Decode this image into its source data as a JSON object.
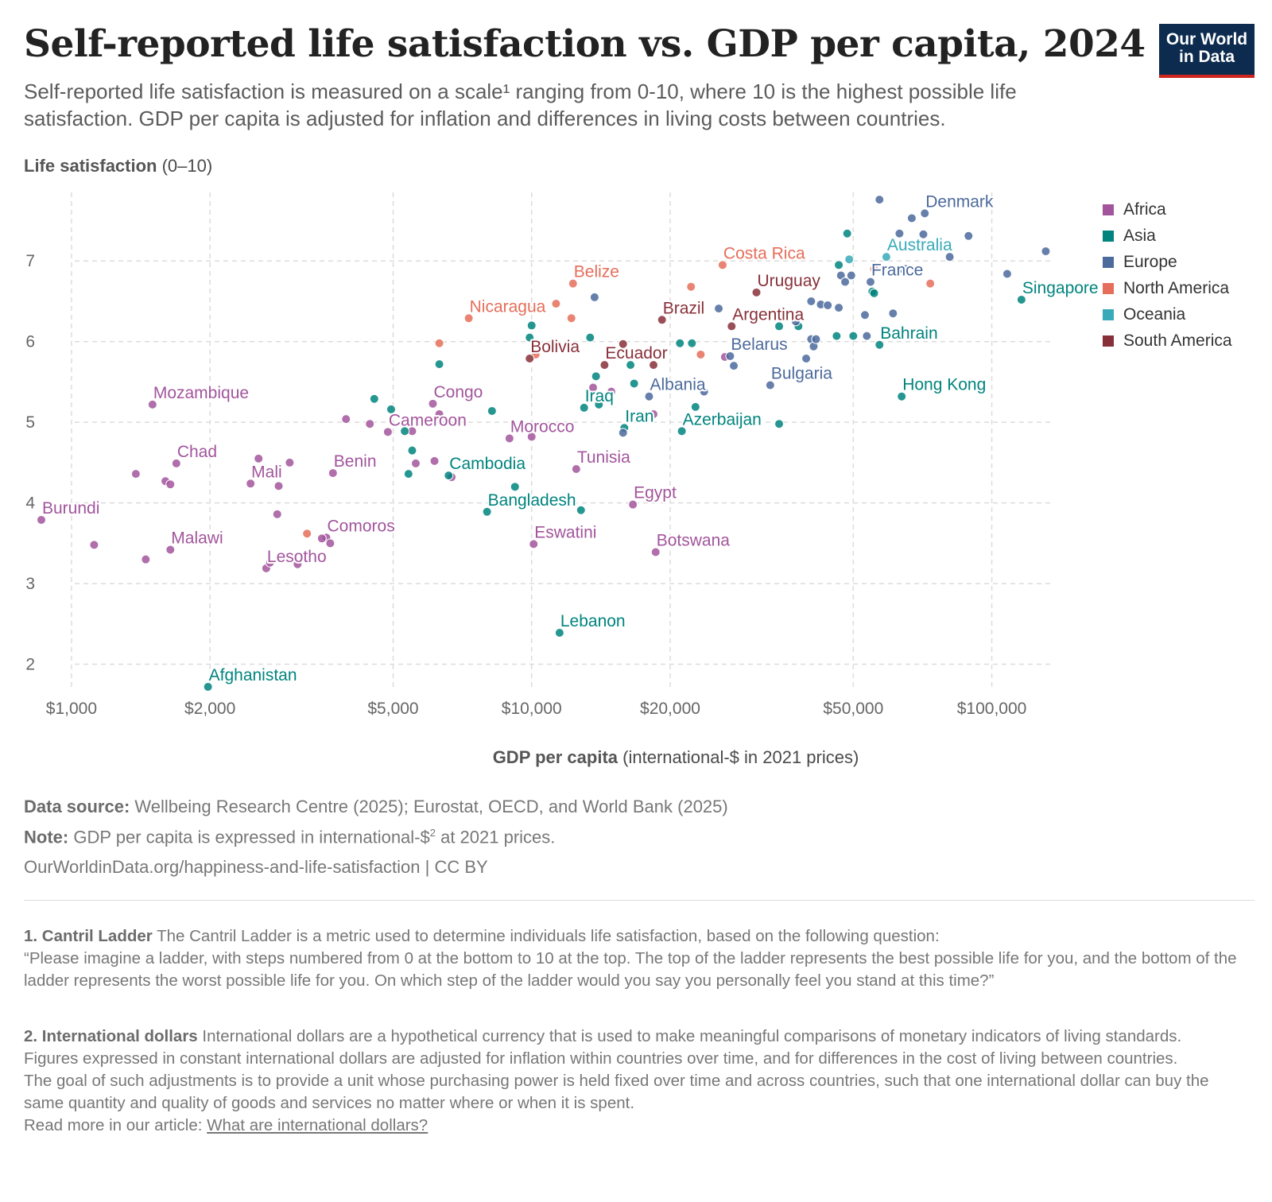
{
  "header": {
    "title": "Self-reported life satisfaction vs. GDP per capita, 2024",
    "subtitle": "Self-reported life satisfaction is measured on a scale¹ ranging from 0-10, where 10 is the highest possible life satisfaction. GDP per capita is adjusted for inflation and differences in living costs between countries.",
    "logo_line1": "Our World",
    "logo_line2": "in Data"
  },
  "colors": {
    "Africa": "#a2559c",
    "Asia": "#00847e",
    "Europe": "#4c6a9c",
    "North America": "#e56e5a",
    "Oceania": "#38aaba",
    "South America": "#883039"
  },
  "chart_data": {
    "type": "scatter",
    "title": "Self-reported life satisfaction vs. GDP per capita, 2024",
    "ylabel_bold": "Life satisfaction",
    "ylabel_rest": "(0–10)",
    "xlabel_bold": "GDP per capita",
    "xlabel_rest": "(international-$ in 2021 prices)",
    "x_scale": "log",
    "xlim": [
      860,
      135000
    ],
    "ylim": [
      1.7,
      7.85
    ],
    "x_ticks": [
      1000,
      2000,
      5000,
      10000,
      20000,
      50000,
      100000
    ],
    "x_tick_labels": [
      "$1,000",
      "$2,000",
      "$5,000",
      "$10,000",
      "$20,000",
      "$50,000",
      "$100,000"
    ],
    "y_ticks": [
      2,
      3,
      4,
      5,
      6,
      7
    ],
    "y_tick_labels": [
      "2",
      "3",
      "4",
      "5",
      "6",
      "7"
    ],
    "grid": true,
    "legend_position": "right",
    "legend": [
      "Africa",
      "Asia",
      "Europe",
      "North America",
      "Oceania",
      "South America"
    ],
    "points": [
      {
        "label": "Burundi",
        "x": 860,
        "y": 3.79,
        "region": "Africa"
      },
      {
        "label": "Malawi",
        "x": 1640,
        "y": 3.42,
        "region": "Africa"
      },
      {
        "label": "Mozambique",
        "x": 1500,
        "y": 5.22,
        "region": "Africa"
      },
      {
        "label": "Chad",
        "x": 1690,
        "y": 4.49,
        "region": "Africa"
      },
      {
        "label": "Mali",
        "x": 2450,
        "y": 4.24,
        "region": "Africa"
      },
      {
        "label": "Lesotho",
        "x": 2650,
        "y": 3.19,
        "region": "Africa"
      },
      {
        "label": "Comoros",
        "x": 3580,
        "y": 3.57,
        "region": "Africa"
      },
      {
        "label": "Benin",
        "x": 3700,
        "y": 4.37,
        "region": "Africa"
      },
      {
        "label": "Cameroon",
        "x": 4870,
        "y": 4.88,
        "region": "Africa"
      },
      {
        "label": "Congo",
        "x": 6100,
        "y": 5.23,
        "region": "Africa"
      },
      {
        "label": "Morocco",
        "x": 8950,
        "y": 4.8,
        "region": "Africa"
      },
      {
        "label": "Eswatini",
        "x": 10100,
        "y": 3.49,
        "region": "Africa"
      },
      {
        "label": "Tunisia",
        "x": 12500,
        "y": 4.42,
        "region": "Africa"
      },
      {
        "label": "Egypt",
        "x": 16600,
        "y": 3.98,
        "region": "Africa"
      },
      {
        "label": "Botswana",
        "x": 18600,
        "y": 3.39,
        "region": "Africa"
      },
      {
        "label": "",
        "x": 1120,
        "y": 3.48,
        "region": "Africa"
      },
      {
        "label": "",
        "x": 1380,
        "y": 4.36,
        "region": "Africa"
      },
      {
        "label": "",
        "x": 1450,
        "y": 3.3,
        "region": "Africa"
      },
      {
        "label": "",
        "x": 1600,
        "y": 4.27,
        "region": "Africa"
      },
      {
        "label": "",
        "x": 1640,
        "y": 4.23,
        "region": "Africa"
      },
      {
        "label": "",
        "x": 2550,
        "y": 4.55,
        "region": "Africa"
      },
      {
        "label": "",
        "x": 2700,
        "y": 3.26,
        "region": "Africa"
      },
      {
        "label": "",
        "x": 2800,
        "y": 3.86,
        "region": "Africa"
      },
      {
        "label": "",
        "x": 2820,
        "y": 4.21,
        "region": "Africa"
      },
      {
        "label": "",
        "x": 2980,
        "y": 4.5,
        "region": "Africa"
      },
      {
        "label": "",
        "x": 3100,
        "y": 3.24,
        "region": "Africa"
      },
      {
        "label": "",
        "x": 3500,
        "y": 3.56,
        "region": "Africa"
      },
      {
        "label": "",
        "x": 3650,
        "y": 3.5,
        "region": "Africa"
      },
      {
        "label": "",
        "x": 3950,
        "y": 5.04,
        "region": "Africa"
      },
      {
        "label": "",
        "x": 4450,
        "y": 4.98,
        "region": "Africa"
      },
      {
        "label": "",
        "x": 5600,
        "y": 4.49,
        "region": "Africa"
      },
      {
        "label": "",
        "x": 5500,
        "y": 4.89,
        "region": "Africa"
      },
      {
        "label": "",
        "x": 6150,
        "y": 4.52,
        "region": "Africa"
      },
      {
        "label": "",
        "x": 6300,
        "y": 5.1,
        "region": "Africa"
      },
      {
        "label": "",
        "x": 6700,
        "y": 4.32,
        "region": "Africa"
      },
      {
        "label": "",
        "x": 10000,
        "y": 4.82,
        "region": "Africa"
      },
      {
        "label": "",
        "x": 13600,
        "y": 5.43,
        "region": "Africa"
      },
      {
        "label": "",
        "x": 14900,
        "y": 5.38,
        "region": "Africa"
      },
      {
        "label": "",
        "x": 18400,
        "y": 5.1,
        "region": "Africa"
      },
      {
        "label": "",
        "x": 26300,
        "y": 5.81,
        "region": "Africa"
      },
      {
        "label": "Afghanistan",
        "x": 1980,
        "y": 1.72,
        "region": "Asia"
      },
      {
        "label": "Cambodia",
        "x": 6600,
        "y": 4.34,
        "region": "Asia"
      },
      {
        "label": "Bangladesh",
        "x": 8000,
        "y": 3.89,
        "region": "Asia"
      },
      {
        "label": "Lebanon",
        "x": 11500,
        "y": 2.39,
        "region": "Asia"
      },
      {
        "label": "Iraq",
        "x": 13000,
        "y": 5.18,
        "region": "Asia"
      },
      {
        "label": "Iran",
        "x": 15900,
        "y": 4.93,
        "region": "Asia"
      },
      {
        "label": "Azerbaijan",
        "x": 21200,
        "y": 4.89,
        "region": "Asia"
      },
      {
        "label": "Bahrain",
        "x": 57000,
        "y": 5.96,
        "region": "Asia"
      },
      {
        "label": "Hong Kong",
        "x": 63700,
        "y": 5.32,
        "region": "Asia"
      },
      {
        "label": "Singapore",
        "x": 116000,
        "y": 6.52,
        "region": "Asia"
      },
      {
        "label": "",
        "x": 4550,
        "y": 5.29,
        "region": "Asia"
      },
      {
        "label": "",
        "x": 4950,
        "y": 5.16,
        "region": "Asia"
      },
      {
        "label": "",
        "x": 5300,
        "y": 4.89,
        "region": "Asia"
      },
      {
        "label": "",
        "x": 5400,
        "y": 4.36,
        "region": "Asia"
      },
      {
        "label": "",
        "x": 5500,
        "y": 4.65,
        "region": "Asia"
      },
      {
        "label": "",
        "x": 6300,
        "y": 5.72,
        "region": "Asia"
      },
      {
        "label": "",
        "x": 8200,
        "y": 5.14,
        "region": "Asia"
      },
      {
        "label": "",
        "x": 9200,
        "y": 4.2,
        "region": "Asia"
      },
      {
        "label": "",
        "x": 9900,
        "y": 6.05,
        "region": "Asia"
      },
      {
        "label": "",
        "x": 10000,
        "y": 6.2,
        "region": "Asia"
      },
      {
        "label": "",
        "x": 12800,
        "y": 3.91,
        "region": "Asia"
      },
      {
        "label": "",
        "x": 13400,
        "y": 6.05,
        "region": "Asia"
      },
      {
        "label": "",
        "x": 13800,
        "y": 5.57,
        "region": "Asia"
      },
      {
        "label": "",
        "x": 14000,
        "y": 5.22,
        "region": "Asia"
      },
      {
        "label": "",
        "x": 16400,
        "y": 5.71,
        "region": "Asia"
      },
      {
        "label": "",
        "x": 16700,
        "y": 5.48,
        "region": "Asia"
      },
      {
        "label": "",
        "x": 21000,
        "y": 5.98,
        "region": "Asia"
      },
      {
        "label": "",
        "x": 22300,
        "y": 5.98,
        "region": "Asia"
      },
      {
        "label": "",
        "x": 22700,
        "y": 5.19,
        "region": "Asia"
      },
      {
        "label": "",
        "x": 34500,
        "y": 4.98,
        "region": "Asia"
      },
      {
        "label": "",
        "x": 34500,
        "y": 6.19,
        "region": "Asia"
      },
      {
        "label": "",
        "x": 38000,
        "y": 6.19,
        "region": "Asia"
      },
      {
        "label": "",
        "x": 46000,
        "y": 6.07,
        "region": "Asia"
      },
      {
        "label": "",
        "x": 46500,
        "y": 6.95,
        "region": "Asia"
      },
      {
        "label": "",
        "x": 48500,
        "y": 7.34,
        "region": "Asia"
      },
      {
        "label": "",
        "x": 50000,
        "y": 6.07,
        "region": "Asia"
      },
      {
        "label": "",
        "x": 55000,
        "y": 6.62,
        "region": "Asia"
      },
      {
        "label": "",
        "x": 55500,
        "y": 6.6,
        "region": "Asia"
      },
      {
        "label": "France",
        "x": 54500,
        "y": 6.74,
        "region": "Europe"
      },
      {
        "label": "Denmark",
        "x": 71500,
        "y": 7.59,
        "region": "Europe"
      },
      {
        "label": "Belarus",
        "x": 27000,
        "y": 5.82,
        "region": "Europe"
      },
      {
        "label": "Bulgaria",
        "x": 33000,
        "y": 5.46,
        "region": "Europe"
      },
      {
        "label": "Albania",
        "x": 18000,
        "y": 5.32,
        "region": "Europe"
      },
      {
        "label": "",
        "x": 13700,
        "y": 6.55,
        "region": "Europe"
      },
      {
        "label": "",
        "x": 15800,
        "y": 4.87,
        "region": "Europe"
      },
      {
        "label": "",
        "x": 23700,
        "y": 5.38,
        "region": "Europe"
      },
      {
        "label": "",
        "x": 25500,
        "y": 6.41,
        "region": "Europe"
      },
      {
        "label": "",
        "x": 27500,
        "y": 5.7,
        "region": "Europe"
      },
      {
        "label": "",
        "x": 37500,
        "y": 6.25,
        "region": "Europe"
      },
      {
        "label": "",
        "x": 39500,
        "y": 5.79,
        "region": "Europe"
      },
      {
        "label": "",
        "x": 40500,
        "y": 6.03,
        "region": "Europe"
      },
      {
        "label": "",
        "x": 40500,
        "y": 6.5,
        "region": "Europe"
      },
      {
        "label": "",
        "x": 41000,
        "y": 5.94,
        "region": "Europe"
      },
      {
        "label": "",
        "x": 41500,
        "y": 6.03,
        "region": "Europe"
      },
      {
        "label": "",
        "x": 42500,
        "y": 6.46,
        "region": "Europe"
      },
      {
        "label": "",
        "x": 44000,
        "y": 6.45,
        "region": "Europe"
      },
      {
        "label": "",
        "x": 46500,
        "y": 6.42,
        "region": "Europe"
      },
      {
        "label": "",
        "x": 47000,
        "y": 6.82,
        "region": "Europe"
      },
      {
        "label": "",
        "x": 48000,
        "y": 6.74,
        "region": "Europe"
      },
      {
        "label": "",
        "x": 49500,
        "y": 6.82,
        "region": "Europe"
      },
      {
        "label": "",
        "x": 53000,
        "y": 6.33,
        "region": "Europe"
      },
      {
        "label": "",
        "x": 53500,
        "y": 6.07,
        "region": "Europe"
      },
      {
        "label": "",
        "x": 57000,
        "y": 7.76,
        "region": "Europe"
      },
      {
        "label": "",
        "x": 61000,
        "y": 6.35,
        "region": "Europe"
      },
      {
        "label": "",
        "x": 63000,
        "y": 7.34,
        "region": "Europe"
      },
      {
        "label": "",
        "x": 64000,
        "y": 6.9,
        "region": "Europe"
      },
      {
        "label": "",
        "x": 65000,
        "y": 6.9,
        "region": "Europe"
      },
      {
        "label": "",
        "x": 67000,
        "y": 7.53,
        "region": "Europe"
      },
      {
        "label": "",
        "x": 71000,
        "y": 7.33,
        "region": "Europe"
      },
      {
        "label": "",
        "x": 81000,
        "y": 7.05,
        "region": "Europe"
      },
      {
        "label": "",
        "x": 89000,
        "y": 7.31,
        "region": "Europe"
      },
      {
        "label": "",
        "x": 108000,
        "y": 6.84,
        "region": "Europe"
      },
      {
        "label": "",
        "x": 131000,
        "y": 7.12,
        "region": "Europe"
      },
      {
        "label": "Belize",
        "x": 12300,
        "y": 6.72,
        "region": "North America"
      },
      {
        "label": "Nicaragua",
        "x": 7300,
        "y": 6.29,
        "region": "North America"
      },
      {
        "label": "Costa Rica",
        "x": 26000,
        "y": 6.95,
        "region": "North America"
      },
      {
        "label": "",
        "x": 3250,
        "y": 3.62,
        "region": "North America"
      },
      {
        "label": "",
        "x": 6300,
        "y": 5.98,
        "region": "North America"
      },
      {
        "label": "",
        "x": 10200,
        "y": 5.84,
        "region": "North America"
      },
      {
        "label": "",
        "x": 11300,
        "y": 6.47,
        "region": "North America"
      },
      {
        "label": "",
        "x": 12200,
        "y": 6.29,
        "region": "North America"
      },
      {
        "label": "",
        "x": 22200,
        "y": 6.68,
        "region": "North America"
      },
      {
        "label": "",
        "x": 23300,
        "y": 5.84,
        "region": "North America"
      },
      {
        "label": "",
        "x": 55500,
        "y": 6.9,
        "region": "North America"
      },
      {
        "label": "",
        "x": 73500,
        "y": 6.72,
        "region": "North America"
      },
      {
        "label": "Australia",
        "x": 59000,
        "y": 7.05,
        "region": "Oceania"
      },
      {
        "label": "",
        "x": 49000,
        "y": 7.02,
        "region": "Oceania"
      },
      {
        "label": "Uruguay",
        "x": 30800,
        "y": 6.61,
        "region": "South America"
      },
      {
        "label": "Brazil",
        "x": 19200,
        "y": 6.27,
        "region": "South America"
      },
      {
        "label": "Argentina",
        "x": 27200,
        "y": 6.19,
        "region": "South America"
      },
      {
        "label": "Bolivia",
        "x": 9900,
        "y": 5.79,
        "region": "South America"
      },
      {
        "label": "Ecuador",
        "x": 14400,
        "y": 5.71,
        "region": "South America"
      },
      {
        "label": "",
        "x": 15800,
        "y": 5.97,
        "region": "South America"
      },
      {
        "label": "",
        "x": 18400,
        "y": 5.71,
        "region": "South America"
      }
    ]
  },
  "footer": {
    "source_bold": "Data source:",
    "source_text": "Wellbeing Research Centre (2025); Eurostat, OECD, and World Bank (2025)",
    "note_bold": "Note:",
    "note_text_before": "GDP per capita is expressed in international-$",
    "note_sup": "2",
    "note_text_after": " at 2021 prices.",
    "url_text": "OurWorldinData.org/happiness-and-life-satisfaction | CC BY",
    "fn1_bold": "1. Cantril Ladder",
    "fn1_text": "The Cantril Ladder is a metric used to determine individuals life satisfaction, based on the following question:",
    "fn1_quote": "“Please imagine a ladder, with steps numbered from 0 at the bottom to 10 at the top. The top of the ladder represents the best possible life for you, and the bottom of the ladder represents the worst possible life for you. On which step of the ladder would you say you personally feel you stand at this time?”",
    "fn2_bold": "2. International dollars",
    "fn2_text": "International dollars are a hypothetical currency that is used to make meaningful comparisons of monetary indicators of living standards.",
    "fn2_p2": "Figures expressed in constant international dollars are adjusted for inflation within countries over time, and for differences in the cost of living between countries.",
    "fn2_p3": "The goal of such adjustments is to provide a unit whose purchasing power is held fixed over time and across countries, such that one international dollar can buy the same quantity and quality of goods and services no matter where or when it is spent.",
    "fn2_read_prefix": "Read more in our article: ",
    "fn2_link": "What are international dollars?"
  }
}
